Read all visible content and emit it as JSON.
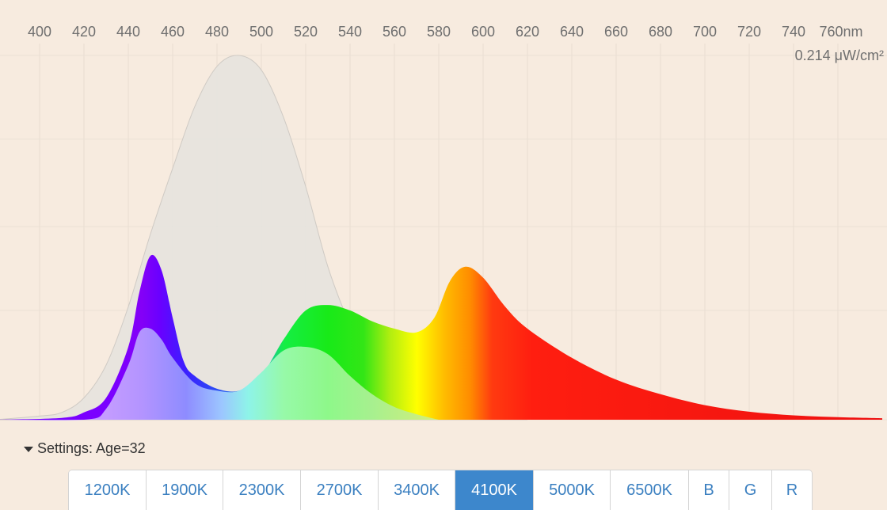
{
  "chart_data": {
    "type": "area",
    "x_unit": "nm",
    "x_ticks": [
      "400",
      "420",
      "440",
      "460",
      "480",
      "500",
      "520",
      "540",
      "560",
      "580",
      "600",
      "620",
      "640",
      "660",
      "680",
      "700",
      "720",
      "740",
      "760nm"
    ],
    "xlim": [
      380,
      780
    ],
    "ylim": [
      0,
      1
    ],
    "grid": true,
    "intensity_label": "0.214 μW/cm²",
    "series": [
      {
        "name": "sensitivity-curve",
        "x": [
          380,
          400,
          410,
          420,
          430,
          440,
          450,
          460,
          470,
          480,
          490,
          500,
          510,
          520,
          530,
          540,
          550,
          560,
          570,
          580,
          600,
          620
        ],
        "values": [
          0,
          0.01,
          0.02,
          0.06,
          0.15,
          0.31,
          0.51,
          0.69,
          0.86,
          0.97,
          1.0,
          0.96,
          0.83,
          0.64,
          0.42,
          0.26,
          0.14,
          0.07,
          0.035,
          0.015,
          0.003,
          0
        ]
      },
      {
        "name": "led-spectrum",
        "x": [
          380,
          410,
          420,
          430,
          440,
          445,
          450,
          455,
          460,
          465,
          470,
          480,
          490,
          500,
          510,
          520,
          530,
          540,
          550,
          560,
          570,
          578,
          585,
          592,
          600,
          610,
          620,
          640,
          660,
          680,
          700,
          720,
          740,
          760,
          780
        ],
        "values": [
          0,
          0.005,
          0.02,
          0.06,
          0.2,
          0.35,
          0.45,
          0.41,
          0.28,
          0.16,
          0.12,
          0.085,
          0.08,
          0.12,
          0.22,
          0.3,
          0.315,
          0.3,
          0.27,
          0.25,
          0.24,
          0.28,
          0.38,
          0.42,
          0.39,
          0.31,
          0.25,
          0.17,
          0.11,
          0.07,
          0.04,
          0.022,
          0.012,
          0.007,
          0.004
        ]
      },
      {
        "name": "inner-spectrum",
        "x": [
          380,
          420,
          430,
          440,
          445,
          450,
          455,
          460,
          470,
          480,
          490,
          500,
          510,
          520,
          530,
          540,
          550,
          560,
          570,
          580
        ],
        "values": [
          0,
          0,
          0.03,
          0.15,
          0.24,
          0.25,
          0.22,
          0.17,
          0.1,
          0.08,
          0.08,
          0.13,
          0.19,
          0.2,
          0.18,
          0.12,
          0.07,
          0.035,
          0.015,
          0
        ]
      }
    ]
  },
  "settings": {
    "label": "Settings: Age=32"
  },
  "buttons": [
    {
      "label": "1200K",
      "active": false
    },
    {
      "label": "1900K",
      "active": false
    },
    {
      "label": "2300K",
      "active": false
    },
    {
      "label": "2700K",
      "active": false
    },
    {
      "label": "3400K",
      "active": false
    },
    {
      "label": "4100K",
      "active": true
    },
    {
      "label": "5000K",
      "active": false
    },
    {
      "label": "6500K",
      "active": false
    },
    {
      "label": "B",
      "active": false
    },
    {
      "label": "G",
      "active": false
    },
    {
      "label": "R",
      "active": false
    }
  ]
}
